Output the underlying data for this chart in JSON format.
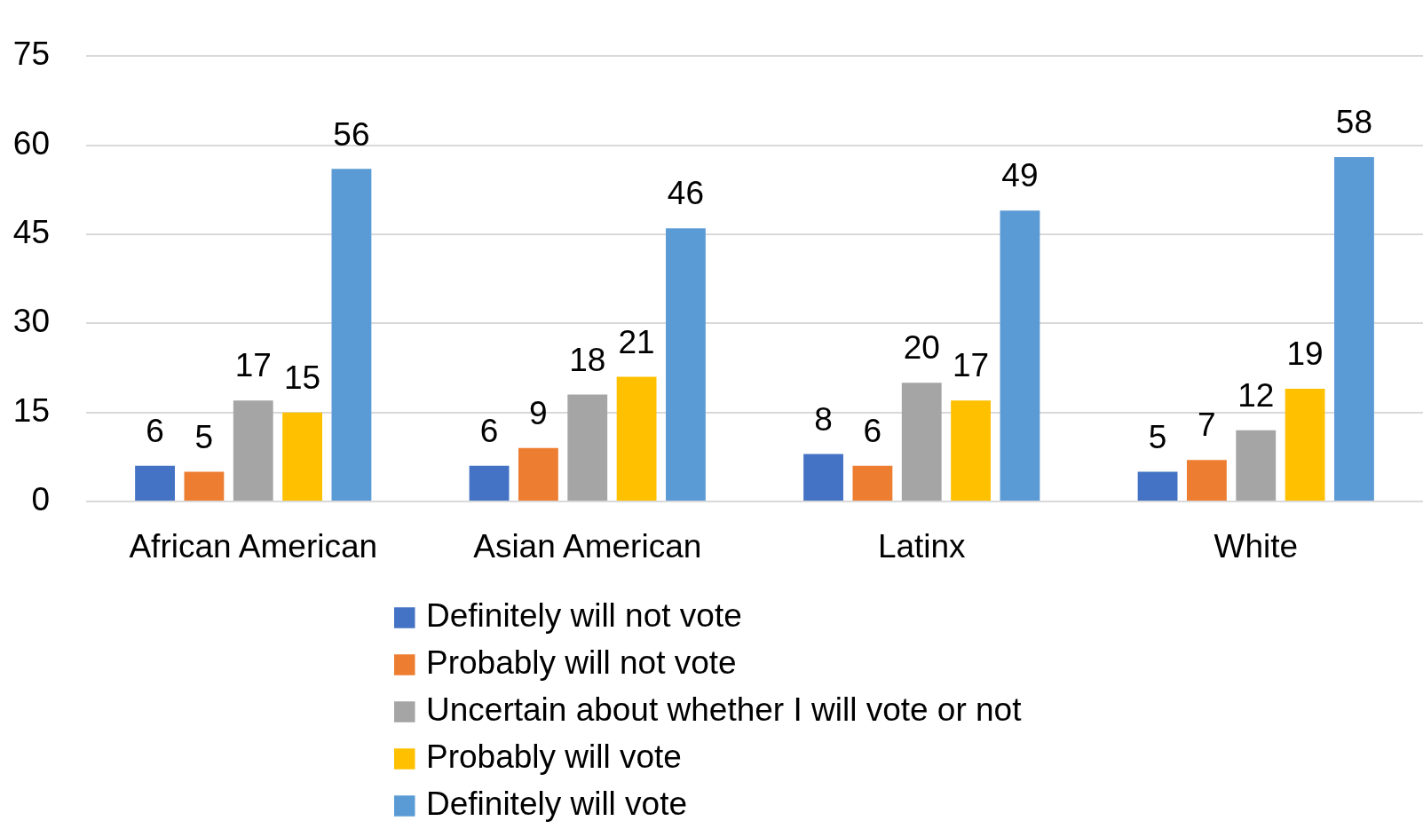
{
  "chart_data": {
    "type": "bar",
    "categories": [
      "African American",
      "Asian American",
      "Latinx",
      "White"
    ],
    "series": [
      {
        "name": "Definitely will not vote",
        "color": "#4472c4",
        "values": [
          6,
          6,
          8,
          5
        ]
      },
      {
        "name": "Probably will not vote",
        "color": "#ed7d31",
        "values": [
          5,
          9,
          6,
          7
        ]
      },
      {
        "name": "Uncertain about whether I will vote or not",
        "color": "#a5a5a5",
        "values": [
          17,
          18,
          20,
          12
        ]
      },
      {
        "name": "Probably will vote",
        "color": "#ffc000",
        "values": [
          15,
          21,
          17,
          19
        ]
      },
      {
        "name": "Definitely will vote",
        "color": "#5b9bd5",
        "values": [
          56,
          46,
          49,
          58
        ]
      }
    ],
    "ylim": [
      0,
      75
    ],
    "yticks": [
      0,
      15,
      30,
      45,
      60,
      75
    ],
    "grid": "y",
    "legend": "bottom",
    "data_labels": true
  }
}
